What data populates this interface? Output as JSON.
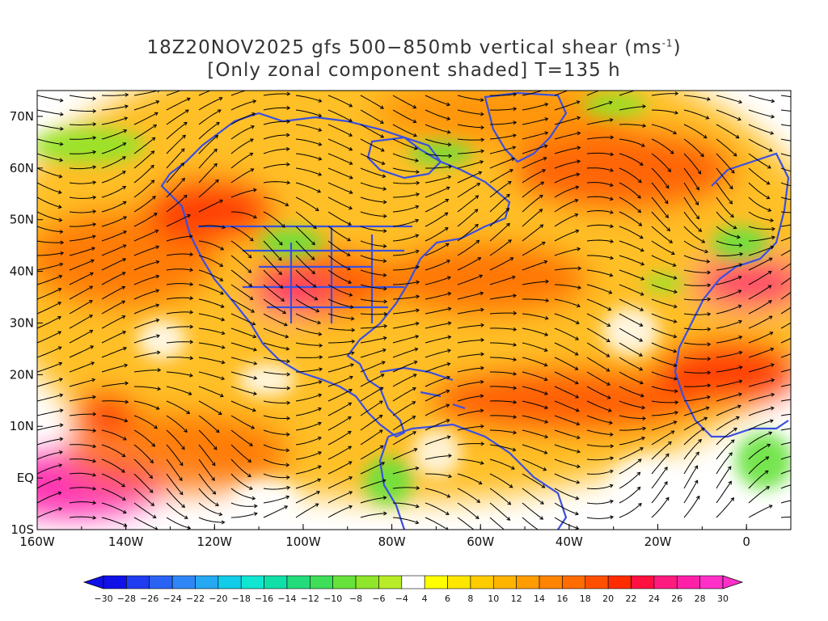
{
  "title": {
    "line1": "18Z20NOV2025 gfs 500−850mb vertical shear (ms",
    "line1_sup": "-1",
    "line1_end": ")",
    "line2": "[Only zonal component shaded] T=135 h"
  },
  "map": {
    "lon_range": [
      -160,
      10
    ],
    "lat_range": [
      -10,
      75
    ],
    "x_ticks": [
      {
        "lon": -160,
        "label": "160W"
      },
      {
        "lon": -140,
        "label": "140W"
      },
      {
        "lon": -120,
        "label": "120W"
      },
      {
        "lon": -100,
        "label": "100W"
      },
      {
        "lon": -80,
        "label": "80W"
      },
      {
        "lon": -60,
        "label": "60W"
      },
      {
        "lon": -40,
        "label": "40W"
      },
      {
        "lon": -20,
        "label": "20W"
      },
      {
        "lon": 0,
        "label": "0"
      }
    ],
    "y_ticks": [
      {
        "lat": 70,
        "label": "70N"
      },
      {
        "lat": 60,
        "label": "60N"
      },
      {
        "lat": 50,
        "label": "50N"
      },
      {
        "lat": 40,
        "label": "40N"
      },
      {
        "lat": 30,
        "label": "30N"
      },
      {
        "lat": 20,
        "label": "20N"
      },
      {
        "lat": 10,
        "label": "10N"
      },
      {
        "lat": 0,
        "label": "EQ"
      },
      {
        "lat": -10,
        "label": "10S"
      }
    ],
    "coastline_color": "#3a4fe0",
    "streamline_color": "#000000"
  },
  "colorbar": {
    "labels": [
      "−30",
      "−28",
      "−26",
      "−24",
      "−22",
      "−20",
      "−18",
      "−16",
      "−14",
      "−12",
      "−10",
      "−8",
      "−6",
      "−4",
      "4",
      "6",
      "8",
      "10",
      "12",
      "14",
      "16",
      "18",
      "20",
      "22",
      "24",
      "26",
      "28",
      "30"
    ],
    "colors": [
      "#1010e8",
      "#1f3cf0",
      "#2a62f4",
      "#2f86f6",
      "#26a8f2",
      "#12cce8",
      "#10e6d2",
      "#10e0a8",
      "#22dc7c",
      "#3ede58",
      "#66e23a",
      "#90e62a",
      "#b8ec28",
      "#ffffff",
      "#ffff00",
      "#ffe600",
      "#ffcc00",
      "#ffb400",
      "#ff9c00",
      "#ff8400",
      "#ff6c00",
      "#ff5000",
      "#ff2c00",
      "#ff1040",
      "#ff1a80",
      "#ff20a8",
      "#ff30c8"
    ],
    "arrow_left_color": "#1010e8",
    "arrow_right_color": "#ff30c8"
  }
}
